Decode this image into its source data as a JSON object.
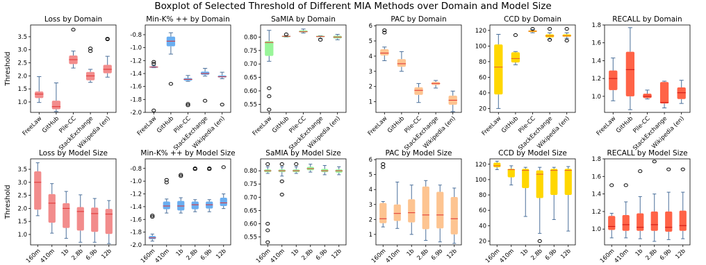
{
  "title": "Boxplot of Selected Threshold of Different MIA Methods over Domain and Model Size",
  "ylabel": "Threshold",
  "chart_data": [
    {
      "type": "box",
      "title": "Loss by Domain",
      "categories": [
        "FreeLaw",
        "GitHub",
        "Pile-CC",
        "StackExchange",
        "Wikipedia (en)"
      ],
      "color": "#f28c8c",
      "ylim": [
        0.6,
        3.95
      ],
      "ticks": [
        "1.0",
        "1.5",
        "2.0",
        "2.5",
        "3.0",
        "3.5"
      ],
      "boxes": [
        {
          "whislo": 0.98,
          "q1": 1.15,
          "med": 1.3,
          "q3": 1.4,
          "whishi": 1.97,
          "fliers": []
        },
        {
          "whislo": 0.63,
          "q1": 0.72,
          "med": 0.82,
          "q3": 1.05,
          "whishi": 1.73,
          "fliers": []
        },
        {
          "whislo": 2.3,
          "q1": 2.45,
          "med": 2.62,
          "q3": 2.78,
          "whishi": 2.95,
          "fliers": [
            3.77
          ]
        },
        {
          "whislo": 1.75,
          "q1": 1.83,
          "med": 2.0,
          "q3": 2.15,
          "whishi": 2.25,
          "fliers": [
            2.95,
            3.05
          ]
        },
        {
          "whislo": 1.95,
          "q1": 2.1,
          "med": 2.25,
          "q3": 2.42,
          "whishi": 2.75,
          "fliers": [
            3.4,
            3.42
          ]
        }
      ]
    },
    {
      "type": "box",
      "title": "Min-K% ++ by Domain",
      "categories": [
        "FreeLaw",
        "GitHub",
        "Pile-CC",
        "StackExchange",
        "Wikipedia (en)"
      ],
      "color": "#6aaef0",
      "ylim": [
        -2.0,
        -0.65
      ],
      "ticks": [
        "-2.0",
        "-1.8",
        "-1.6",
        "-1.4",
        "-1.2",
        "-1.0",
        "-0.8"
      ],
      "boxes": [
        {
          "whislo": -1.31,
          "q1": -1.31,
          "med": -1.3,
          "q3": -1.29,
          "whishi": -1.28,
          "fliers": [
            -1.22,
            -1.25,
            -1.97
          ]
        },
        {
          "whislo": -1.1,
          "q1": -0.98,
          "med": -0.9,
          "q3": -0.83,
          "whishi": -0.77,
          "fliers": [
            -1.56
          ]
        },
        {
          "whislo": -1.52,
          "q1": -1.51,
          "med": -1.49,
          "q3": -1.47,
          "whishi": -1.43,
          "fliers": [
            -1.87,
            -1.89
          ]
        },
        {
          "whislo": -1.44,
          "q1": -1.42,
          "med": -1.4,
          "q3": -1.37,
          "whishi": -1.32,
          "fliers": [
            -1.82
          ]
        },
        {
          "whislo": -1.48,
          "q1": -1.46,
          "med": -1.45,
          "q3": -1.43,
          "whishi": -1.38,
          "fliers": [
            -1.88
          ]
        }
      ]
    },
    {
      "type": "box",
      "title": "SaMIA by Domain",
      "categories": [
        "FreeLaw",
        "GitHub",
        "Pile-CC",
        "StackExchange",
        "Wikipedia (en)"
      ],
      "color": "#99f599",
      "ylim": [
        0.52,
        0.845
      ],
      "ticks": [
        "0.55",
        "0.60",
        "0.65",
        "0.70",
        "0.75",
        "0.80"
      ],
      "boxes": [
        {
          "whislo": 0.71,
          "q1": 0.73,
          "med": 0.78,
          "q3": 0.785,
          "whishi": 0.825,
          "fliers": [
            0.61,
            0.58,
            0.53
          ]
        },
        {
          "whislo": 0.8,
          "q1": 0.8,
          "med": 0.803,
          "q3": 0.805,
          "whishi": 0.805,
          "fliers": [
            0.81
          ]
        },
        {
          "whislo": 0.815,
          "q1": 0.818,
          "med": 0.82,
          "q3": 0.825,
          "whishi": 0.83,
          "fliers": []
        },
        {
          "whislo": 0.795,
          "q1": 0.8,
          "med": 0.802,
          "q3": 0.805,
          "whishi": 0.805,
          "fliers": [
            0.79
          ]
        },
        {
          "whislo": 0.79,
          "q1": 0.795,
          "med": 0.8,
          "q3": 0.805,
          "whishi": 0.81,
          "fliers": []
        }
      ]
    },
    {
      "type": "box",
      "title": "PAC by Domain",
      "categories": [
        "FreeLaw",
        "GitHub",
        "Pile-CC",
        "StackExchange",
        "Wikipedia (en)"
      ],
      "color": "#fdc491",
      "ylim": [
        0.3,
        6.05
      ],
      "ticks": [
        "1",
        "2",
        "3",
        "4",
        "5",
        "6"
      ],
      "boxes": [
        {
          "whislo": 3.7,
          "q1": 4.05,
          "med": 4.2,
          "q3": 4.45,
          "whishi": 4.6,
          "fliers": [
            5.55,
            5.7
          ]
        },
        {
          "whislo": 3.0,
          "q1": 3.3,
          "med": 3.5,
          "q3": 3.8,
          "whishi": 4.3,
          "fliers": []
        },
        {
          "whislo": 0.95,
          "q1": 1.45,
          "med": 1.75,
          "q3": 1.95,
          "whishi": 2.2,
          "fliers": []
        },
        {
          "whislo": 1.9,
          "q1": 2.1,
          "med": 2.2,
          "q3": 2.3,
          "whishi": 2.4,
          "fliers": []
        },
        {
          "whislo": 0.35,
          "q1": 0.8,
          "med": 1.1,
          "q3": 1.4,
          "whishi": 1.7,
          "fliers": []
        }
      ]
    },
    {
      "type": "box",
      "title": "CCD by Domain",
      "categories": [
        "FreeLaw",
        "GitHub",
        "Pile-CC",
        "StackExchange",
        "Wikipedia (en)"
      ],
      "color": "#ffd700",
      "median_color": "#e4572e",
      "ylim": [
        15,
        127
      ],
      "ticks": [
        "20",
        "40",
        "60",
        "80",
        "100",
        "120"
      ],
      "boxes": [
        {
          "whislo": 20,
          "q1": 38,
          "med": 73,
          "q3": 102,
          "whishi": 115,
          "fliers": []
        },
        {
          "whislo": 76,
          "q1": 79,
          "med": 84,
          "q3": 92,
          "whishi": 93,
          "fliers": [
            114
          ]
        },
        {
          "whislo": 117,
          "q1": 118,
          "med": 119,
          "q3": 120,
          "whishi": 121,
          "fliers": [
            122
          ]
        },
        {
          "whislo": 109,
          "q1": 111,
          "med": 113,
          "q3": 115,
          "whishi": 117,
          "fliers": [
            108,
            122
          ]
        },
        {
          "whislo": 110,
          "q1": 112,
          "med": 113,
          "q3": 115,
          "whishi": 117,
          "fliers": [
            107,
            122
          ]
        }
      ]
    },
    {
      "type": "box",
      "title": "RECALL by Domain",
      "categories": [
        "FreeLaw",
        "GitHub",
        "Pile-CC",
        "StackExchange",
        "Wikipedia (en)"
      ],
      "color": "#ff6347",
      "median_color": "#cc1111",
      "ylim": [
        0.82,
        1.8
      ],
      "ticks": [
        "1.0",
        "1.2",
        "1.4",
        "1.6",
        "1.8"
      ],
      "boxes": [
        {
          "whislo": 0.95,
          "q1": 1.07,
          "med": 1.2,
          "q3": 1.29,
          "whishi": 1.43,
          "fliers": []
        },
        {
          "whislo": 0.85,
          "q1": 1.0,
          "med": 1.3,
          "q3": 1.5,
          "whishi": 1.77,
          "fliers": []
        },
        {
          "whislo": 0.97,
          "q1": 0.98,
          "med": 1.0,
          "q3": 1.03,
          "whishi": 1.07,
          "fliers": []
        },
        {
          "whislo": 0.87,
          "q1": 0.92,
          "med": 0.93,
          "q3": 1.16,
          "whishi": 1.17,
          "fliers": []
        },
        {
          "whislo": 0.92,
          "q1": 0.97,
          "med": 1.04,
          "q3": 1.1,
          "whishi": 1.18,
          "fliers": []
        }
      ]
    },
    {
      "type": "box",
      "title": "Loss by Model Size",
      "categories": [
        "160m",
        "410m",
        "1b",
        "2.8b",
        "6.9b",
        "12b"
      ],
      "color": "#f28c8c",
      "ylim": [
        0.6,
        3.9
      ],
      "ticks": [
        "1.0",
        "1.5",
        "2.0",
        "2.5",
        "3.0",
        "3.5"
      ],
      "boxes": [
        {
          "whislo": 1.72,
          "q1": 1.95,
          "med": 3.0,
          "q3": 3.42,
          "whishi": 3.75,
          "fliers": []
        },
        {
          "whislo": 1.05,
          "q1": 1.45,
          "med": 2.2,
          "q3": 2.55,
          "whishi": 2.95,
          "fliers": []
        },
        {
          "whislo": 0.85,
          "q1": 1.25,
          "med": 2.0,
          "q3": 2.2,
          "whishi": 2.65,
          "fliers": []
        },
        {
          "whislo": 0.7,
          "q1": 1.15,
          "med": 1.88,
          "q3": 2.05,
          "whishi": 2.52,
          "fliers": []
        },
        {
          "whislo": 0.7,
          "q1": 1.1,
          "med": 1.8,
          "q3": 2.03,
          "whishi": 2.38,
          "fliers": []
        },
        {
          "whislo": 0.65,
          "q1": 1.02,
          "med": 1.78,
          "q3": 1.98,
          "whishi": 2.3,
          "fliers": []
        }
      ]
    },
    {
      "type": "box",
      "title": "Min-K% ++ by Model Size",
      "categories": [
        "160m",
        "410m",
        "1b",
        "2.8b",
        "6.9b",
        "12b"
      ],
      "color": "#6aaef0",
      "ylim": [
        -2.0,
        -0.65
      ],
      "ticks": [
        "-2.0",
        "-1.8",
        "-1.6",
        "-1.4",
        "-1.2",
        "-1.0",
        "-0.8"
      ],
      "boxes": [
        {
          "whislo": -1.94,
          "q1": -1.91,
          "med": -1.89,
          "q3": -1.86,
          "whishi": -1.83,
          "fliers": [
            -1.54,
            -1.56
          ]
        },
        {
          "whislo": -1.5,
          "q1": -1.44,
          "med": -1.39,
          "q3": -1.32,
          "whishi": -1.28,
          "fliers": [
            -0.98,
            -1.02
          ]
        },
        {
          "whislo": -1.5,
          "q1": -1.46,
          "med": -1.39,
          "q3": -1.31,
          "whishi": -1.26,
          "fliers": [
            -0.9,
            -0.92
          ]
        },
        {
          "whislo": -1.48,
          "q1": -1.44,
          "med": -1.37,
          "q3": -1.32,
          "whishi": -1.29,
          "fliers": [
            -0.8,
            -0.81
          ]
        },
        {
          "whislo": -1.48,
          "q1": -1.43,
          "med": -1.37,
          "q3": -1.32,
          "whishi": -1.29,
          "fliers": [
            -0.8,
            -0.81
          ]
        },
        {
          "whislo": -1.43,
          "q1": -1.39,
          "med": -1.34,
          "q3": -1.26,
          "whishi": -1.2,
          "fliers": [
            -0.78
          ]
        }
      ]
    },
    {
      "type": "box",
      "title": "SaMIA by Model Size",
      "categories": [
        "160m",
        "410m",
        "1b",
        "2.8b",
        "6.9b",
        "12b"
      ],
      "color": "#99f599",
      "ylim": [
        0.52,
        0.845
      ],
      "ticks": [
        "0.55",
        "0.60",
        "0.65",
        "0.70",
        "0.75",
        "0.80"
      ],
      "boxes": [
        {
          "whislo": 0.79,
          "q1": 0.795,
          "med": 0.8,
          "q3": 0.805,
          "whishi": 0.815,
          "fliers": [
            0.825,
            0.6,
            0.575,
            0.53
          ]
        },
        {
          "whislo": 0.78,
          "q1": 0.795,
          "med": 0.8,
          "q3": 0.805,
          "whishi": 0.815,
          "fliers": [
            0.825,
            0.76,
            0.71
          ]
        },
        {
          "whislo": 0.79,
          "q1": 0.795,
          "med": 0.8,
          "q3": 0.805,
          "whishi": 0.815,
          "fliers": [
            0.825
          ]
        },
        {
          "whislo": 0.795,
          "q1": 0.802,
          "med": 0.808,
          "q3": 0.815,
          "whishi": 0.825,
          "fliers": []
        },
        {
          "whislo": 0.785,
          "q1": 0.795,
          "med": 0.8,
          "q3": 0.807,
          "whishi": 0.82,
          "fliers": []
        },
        {
          "whislo": 0.785,
          "q1": 0.793,
          "med": 0.8,
          "q3": 0.805,
          "whishi": 0.815,
          "fliers": []
        }
      ]
    },
    {
      "type": "box",
      "title": "PAC by Model Size",
      "categories": [
        "160m",
        "410m",
        "1b",
        "2.8b",
        "6.9b",
        "12b"
      ],
      "color": "#fdc491",
      "ylim": [
        0.3,
        6.05
      ],
      "ticks": [
        "1",
        "2",
        "3",
        "4",
        "5",
        "6"
      ],
      "boxes": [
        {
          "whislo": 1.5,
          "q1": 1.75,
          "med": 2.05,
          "q3": 3.1,
          "whishi": 3.2,
          "fliers": [
            5.5,
            5.7
          ]
        },
        {
          "whislo": 1.4,
          "q1": 1.9,
          "med": 2.4,
          "q3": 3.0,
          "whishi": 4.5,
          "fliers": []
        },
        {
          "whislo": 1.0,
          "q1": 1.8,
          "med": 2.45,
          "q3": 3.35,
          "whishi": 4.3,
          "fliers": []
        },
        {
          "whislo": 0.6,
          "q1": 1.35,
          "med": 2.3,
          "q3": 4.2,
          "whishi": 4.6,
          "fliers": []
        },
        {
          "whislo": 0.5,
          "q1": 1.4,
          "med": 2.3,
          "q3": 3.85,
          "whishi": 4.3,
          "fliers": []
        },
        {
          "whislo": 0.4,
          "q1": 1.0,
          "med": 2.05,
          "q3": 3.5,
          "whishi": 4.1,
          "fliers": []
        }
      ]
    },
    {
      "type": "box",
      "title": "CCD by Model Size",
      "categories": [
        "160m",
        "410m",
        "1b",
        "2.8b",
        "6.9b",
        "12b"
      ],
      "color": "#ffd700",
      "median_color": "#e4572e",
      "ylim": [
        15,
        127
      ],
      "ticks": [
        "20",
        "40",
        "60",
        "80",
        "100",
        "120"
      ],
      "boxes": [
        {
          "whislo": 113,
          "q1": 116,
          "med": 118,
          "q3": 122,
          "whishi": 124,
          "fliers": []
        },
        {
          "whislo": 93,
          "q1": 103,
          "med": 113,
          "q3": 114,
          "whishi": 118,
          "fliers": []
        },
        {
          "whislo": 52,
          "q1": 89,
          "med": 112,
          "q3": 114,
          "whishi": 116,
          "fliers": []
        },
        {
          "whislo": 30,
          "q1": 76,
          "med": 107,
          "q3": 112,
          "whishi": 116,
          "fliers": [
            20
          ]
        },
        {
          "whislo": 48,
          "q1": 80,
          "med": 112,
          "q3": 114,
          "whishi": 116,
          "fliers": []
        },
        {
          "whislo": 33,
          "q1": 80,
          "med": 112,
          "q3": 114,
          "whishi": 117,
          "fliers": []
        }
      ]
    },
    {
      "type": "box",
      "title": "RECALL by Model Size",
      "categories": [
        "160m",
        "410m",
        "1b",
        "2.8b",
        "6.9b",
        "12b"
      ],
      "color": "#ff6347",
      "median_color": "#cc1111",
      "ylim": [
        0.82,
        1.8
      ],
      "ticks": [
        "1.0",
        "1.2",
        "1.4",
        "1.6",
        "1.8"
      ],
      "boxes": [
        {
          "whislo": 0.9,
          "q1": 0.99,
          "med": 1.03,
          "q3": 1.15,
          "whishi": 1.18,
          "fliers": [
            1.5
          ]
        },
        {
          "whislo": 0.9,
          "q1": 0.98,
          "med": 1.05,
          "q3": 1.16,
          "whishi": 1.31,
          "fliers": [
            1.5
          ]
        },
        {
          "whislo": 0.89,
          "q1": 0.98,
          "med": 1.02,
          "q3": 1.18,
          "whishi": 1.37,
          "fliers": [
            1.66
          ]
        },
        {
          "whislo": 0.86,
          "q1": 0.98,
          "med": 1.05,
          "q3": 1.2,
          "whishi": 1.4,
          "fliers": [
            1.77
          ]
        },
        {
          "whislo": 0.88,
          "q1": 0.97,
          "med": 1.02,
          "q3": 1.2,
          "whishi": 1.42,
          "fliers": [
            1.68
          ]
        },
        {
          "whislo": 0.89,
          "q1": 0.98,
          "med": 1.04,
          "q3": 1.21,
          "whishi": 1.42,
          "fliers": [
            1.68
          ]
        }
      ]
    }
  ]
}
